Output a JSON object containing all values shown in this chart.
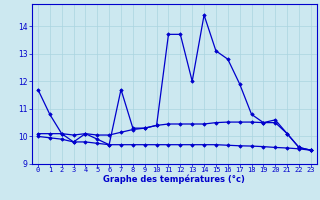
{
  "xlabel": "Graphe des températures (°c)",
  "background_color": "#cce8f0",
  "line1_x": [
    0,
    1,
    2,
    3,
    4,
    5,
    6,
    7,
    8,
    9,
    10,
    11,
    12,
    13,
    14,
    15,
    16,
    17,
    18,
    19,
    20,
    21,
    22,
    23
  ],
  "line1_y": [
    11.7,
    10.8,
    10.1,
    9.8,
    10.1,
    9.9,
    9.7,
    11.7,
    10.3,
    10.3,
    10.4,
    13.7,
    13.7,
    12.0,
    14.4,
    13.1,
    12.8,
    11.9,
    10.8,
    10.5,
    10.6,
    10.1,
    9.6,
    9.5
  ],
  "line2_x": [
    0,
    1,
    2,
    3,
    4,
    5,
    6,
    7,
    8,
    9,
    10,
    11,
    12,
    13,
    14,
    15,
    16,
    17,
    18,
    19,
    20,
    21,
    22,
    23
  ],
  "line2_y": [
    10.1,
    10.1,
    10.1,
    10.05,
    10.1,
    10.05,
    10.05,
    10.15,
    10.25,
    10.3,
    10.4,
    10.45,
    10.45,
    10.45,
    10.45,
    10.5,
    10.52,
    10.52,
    10.52,
    10.5,
    10.5,
    10.1,
    9.6,
    9.5
  ],
  "line3_x": [
    0,
    1,
    2,
    3,
    4,
    5,
    6,
    7,
    8,
    9,
    10,
    11,
    12,
    13,
    14,
    15,
    16,
    17,
    18,
    19,
    20,
    21,
    22,
    23
  ],
  "line3_y": [
    10.0,
    9.95,
    9.9,
    9.8,
    9.8,
    9.75,
    9.7,
    9.7,
    9.7,
    9.7,
    9.7,
    9.7,
    9.7,
    9.7,
    9.7,
    9.7,
    9.68,
    9.66,
    9.65,
    9.63,
    9.6,
    9.58,
    9.55,
    9.5
  ],
  "line_color": "#0000cc",
  "marker": "D",
  "markersize": 1.8,
  "linewidth": 0.9,
  "ylim": [
    9.0,
    14.8
  ],
  "xlim": [
    -0.5,
    23.5
  ],
  "yticks": [
    9,
    10,
    11,
    12,
    13,
    14
  ],
  "xticks": [
    0,
    1,
    2,
    3,
    4,
    5,
    6,
    7,
    8,
    9,
    10,
    11,
    12,
    13,
    14,
    15,
    16,
    17,
    18,
    19,
    20,
    21,
    22,
    23
  ],
  "grid_color": "#aad4e0",
  "grid_linewidth": 0.5,
  "tick_fontsize": 5.0,
  "xlabel_fontsize": 6.0
}
